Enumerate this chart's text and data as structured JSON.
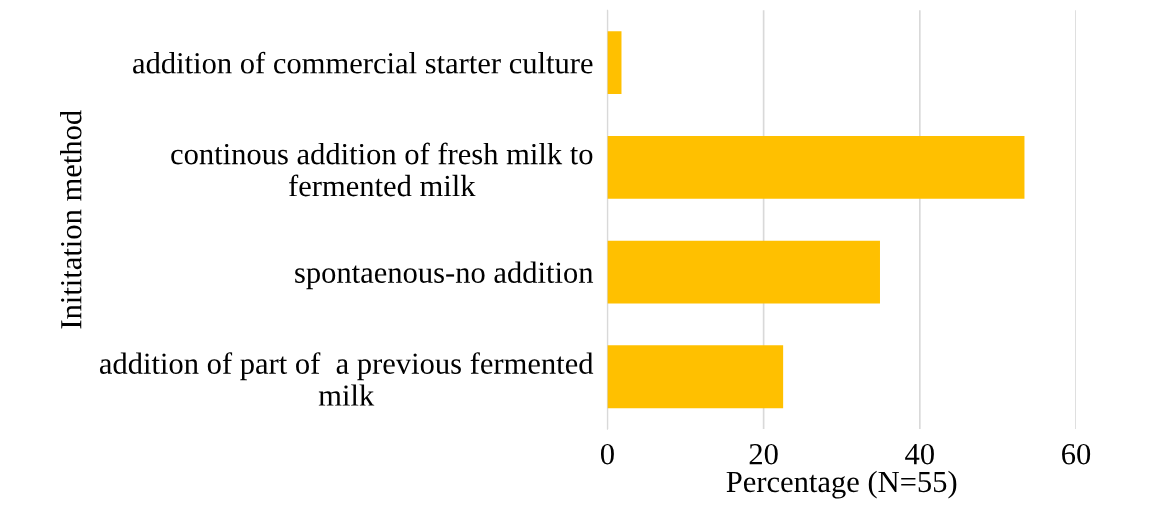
{
  "chart_data": {
    "type": "bar",
    "orientation": "horizontal",
    "xlabel": "Percentage (N=55)",
    "ylabel": "Inititation method",
    "categories": [
      "addition of commercial starter culture",
      "continous addition of fresh milk to\nfermented milk",
      "spontaenous-no addition",
      "addition of part of  a previous fermented\nmilk"
    ],
    "values": [
      1.8,
      53.4,
      34.9,
      22.5
    ],
    "color": "#ffc000",
    "xlim": [
      0,
      60
    ],
    "xticks": [
      0,
      20,
      40,
      60
    ],
    "grid": "x",
    "legend": false
  }
}
